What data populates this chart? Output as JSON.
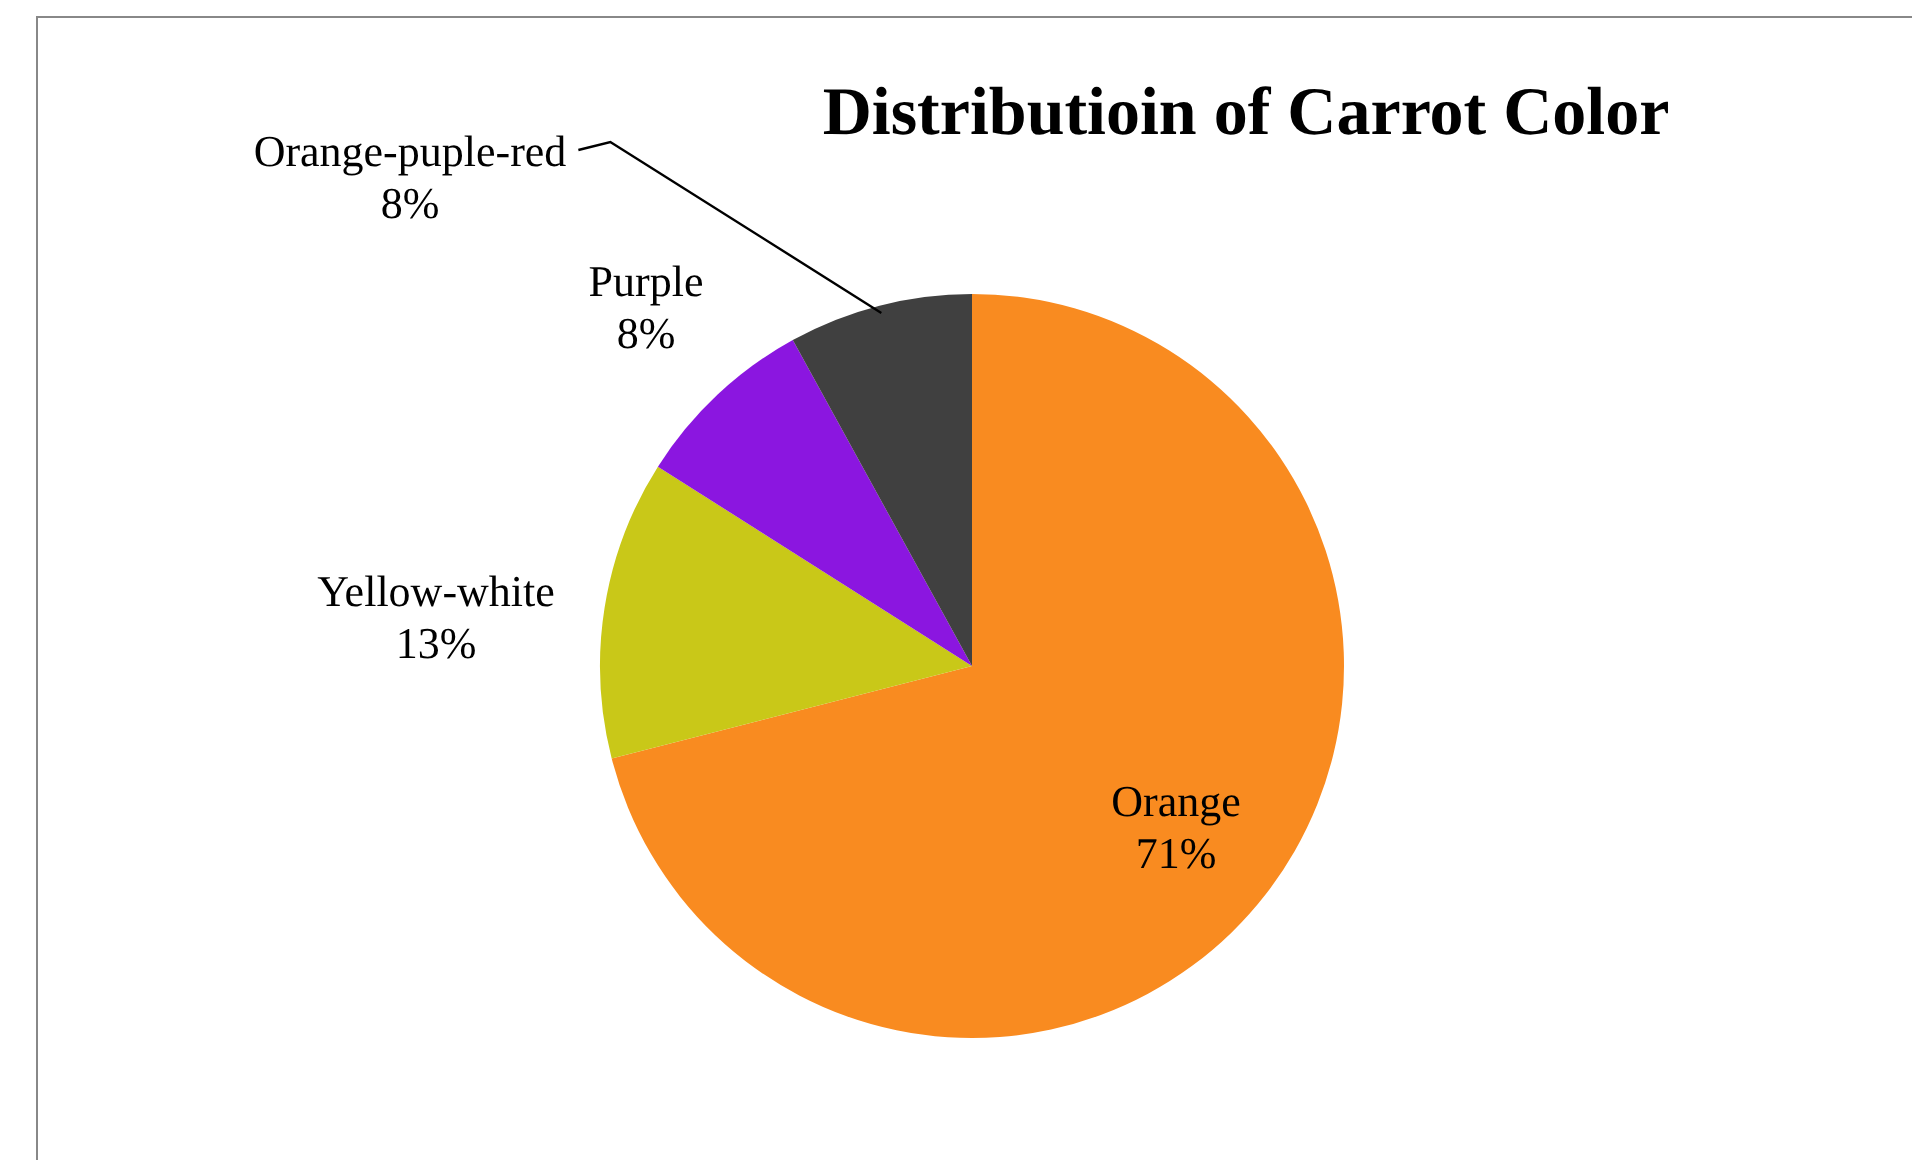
{
  "chart_data": {
    "type": "pie",
    "title": "Distributioin of Carrot Color",
    "categories": [
      "Orange",
      "Yellow-white",
      "Purple",
      "Orange-puple-red"
    ],
    "values": [
      71,
      13,
      8,
      8
    ],
    "colors": [
      "#f98b20",
      "#c9c818",
      "#8b16e0",
      "#404040"
    ],
    "value_labels": [
      "71%",
      "13%",
      "8%",
      "8%"
    ],
    "legend": false
  }
}
